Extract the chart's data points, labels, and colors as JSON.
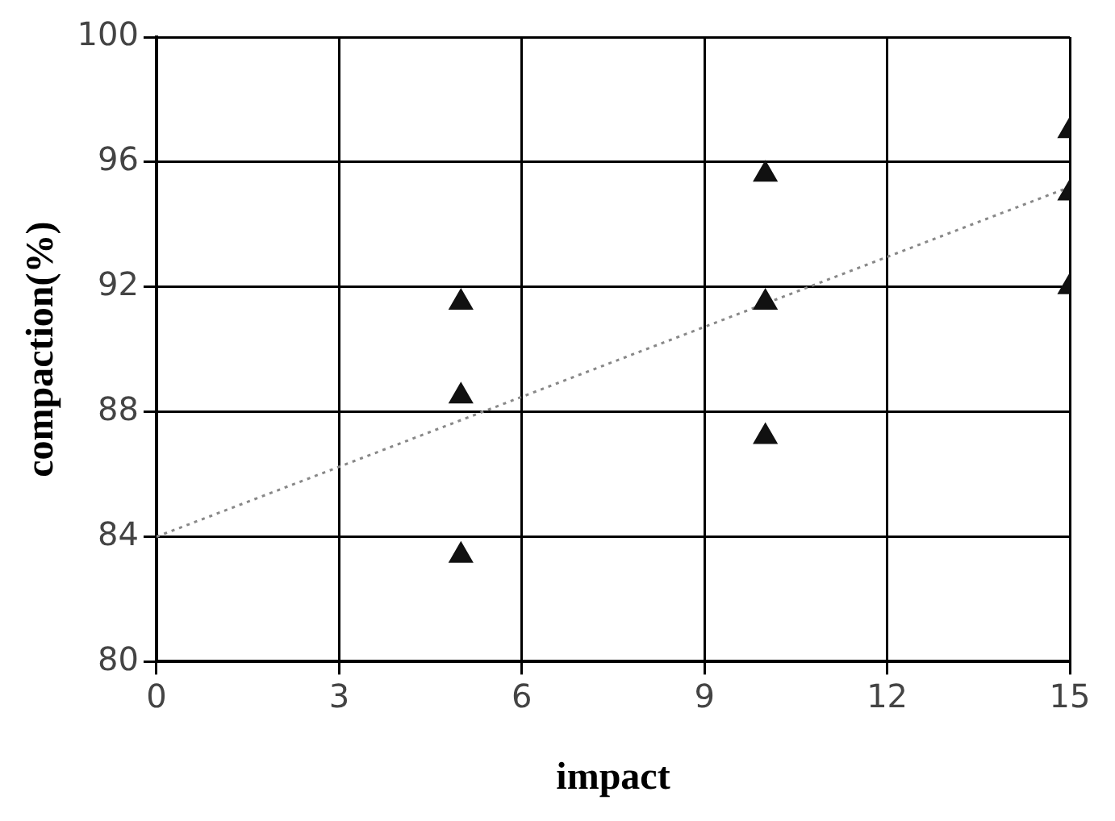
{
  "chart_data": {
    "type": "scatter",
    "xlabel": "impact",
    "ylabel": "compaction(%)",
    "xlim": [
      0,
      15
    ],
    "xticks": [
      0,
      3,
      6,
      9,
      12,
      15
    ],
    "ylim": [
      80,
      100
    ],
    "yticks": [
      80,
      84,
      88,
      92,
      96,
      100
    ],
    "grid": true,
    "legend": false,
    "marker": "triangle",
    "series": [
      {
        "type": "scatter",
        "color": "#111111",
        "x": [
          5,
          5,
          5,
          10,
          10,
          10,
          15,
          15,
          15
        ],
        "values": [
          91.5,
          88.5,
          83.4,
          95.6,
          91.5,
          87.2,
          97,
          95,
          92
        ]
      },
      {
        "type": "line",
        "color": "#888888",
        "x": [
          0,
          15
        ],
        "values": [
          84,
          95.2
        ],
        "marker": "none",
        "line_style": "dotted"
      }
    ]
  }
}
